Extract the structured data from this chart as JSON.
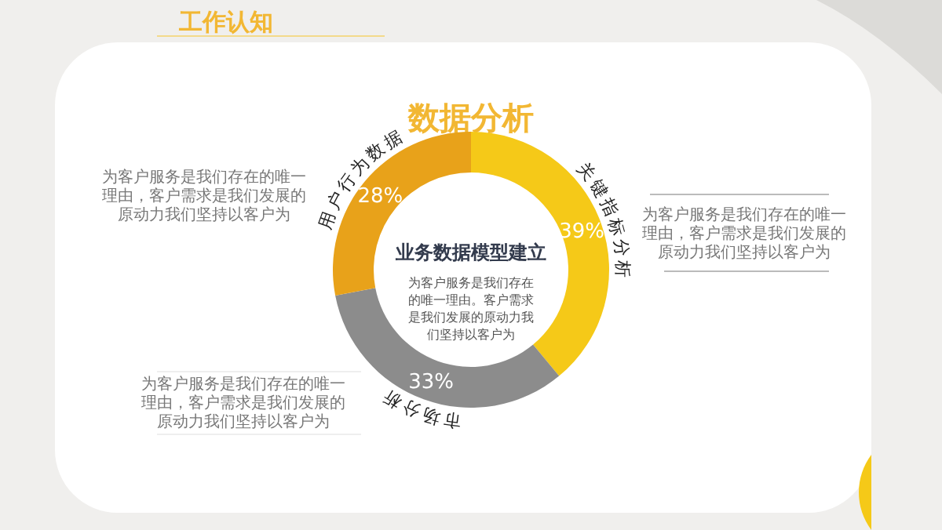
{
  "chart_data": {
    "type": "donut",
    "title": "数据分析",
    "subtitle": "工作认知",
    "categories": [
      "关键指标分析",
      "市场分析",
      "用户行为数据"
    ],
    "values": [
      39,
      33,
      28
    ],
    "colors": [
      "#f5c918",
      "#8c8c8c",
      "#e8a21a"
    ],
    "value_labels": [
      "39%",
      "33%",
      "28%"
    ],
    "annotations": [
      "业务数据模型建立",
      "为客户服务是我们存在的唯一理由。客户需求是我们发展的原动力我们坚持以客户为",
      "为客户服务是我们存在的唯一理由，客户需求是我们发展的原动力我们坚持以客户为",
      "为客户服务是我们存在的唯一理由，客户需求是我们发展的原动力我们坚持以客户为",
      "为客户服务是我们存在的唯一理由，客户需求是我们发展的原动力我们坚持以客户为"
    ]
  }
}
